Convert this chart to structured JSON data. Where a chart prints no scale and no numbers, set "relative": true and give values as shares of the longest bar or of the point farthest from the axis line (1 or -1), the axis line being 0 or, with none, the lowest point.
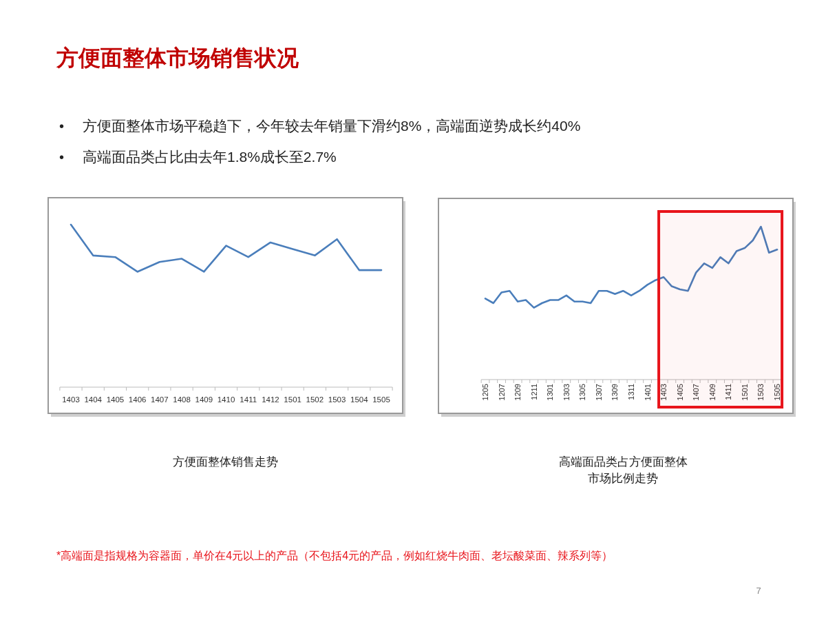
{
  "chart_data": [
    {
      "type": "other",
      "title": "方便面整体市场销售状况",
      "annotations": [
        "• 方便面整体市场平稳趋下，今年较去年销量下滑约8%，高端面逆势成长约40%",
        "• 高端面品类占比由去年1.8%成长至2.7%",
        "*高端面是指规格为容器面，单价在4元以上的产品（不包括4元的产品，例如红烧牛肉面、老坛酸菜面、辣系列等）",
        "7"
      ]
    },
    {
      "type": "line",
      "title": "方便面整体销售走势",
      "relative": true,
      "color": "#4a7ebb",
      "categories": [
        "1403",
        "1404",
        "1405",
        "1406",
        "1407",
        "1408",
        "1409",
        "1410",
        "1411",
        "1412",
        "1501",
        "1502",
        "1503",
        "1504",
        "1505"
      ],
      "values": [
        1,
        0.81,
        0.8,
        0.71,
        0.77,
        0.79,
        0.71,
        0.87,
        0.8,
        0.89,
        0.85,
        0.81,
        0.91,
        0.72,
        0.72
      ]
    },
    {
      "type": "line",
      "title": "高端面品类占方便面整体市场比例走势",
      "relative": true,
      "color": "#4a7ebb",
      "categories": [
        "1205",
        null,
        "1207",
        null,
        "1209",
        null,
        "1211",
        null,
        "1301",
        null,
        "1303",
        null,
        "1305",
        null,
        "1307",
        null,
        "1309",
        null,
        "1311",
        null,
        "1401",
        null,
        "1403",
        null,
        "1405",
        null,
        "1407",
        null,
        "1409",
        null,
        "1411",
        null,
        "1501",
        null,
        "1503",
        null,
        "1505"
      ],
      "values": [
        0.53,
        0.5,
        0.57,
        0.58,
        0.51,
        0.52,
        0.47,
        0.5,
        0.52,
        0.52,
        0.55,
        0.51,
        0.51,
        0.5,
        0.58,
        0.58,
        0.56,
        0.58,
        0.55,
        0.58,
        0.62,
        0.65,
        0.67,
        0.61,
        0.59,
        0.58,
        0.7,
        0.76,
        0.73,
        0.8,
        0.76,
        0.84,
        0.86,
        0.91,
        1,
        0.83,
        0.85
      ],
      "bands": [
        {
          "axis": "x",
          "from": "1403",
          "to": "1505",
          "color": "#e8141b"
        }
      ]
    }
  ]
}
